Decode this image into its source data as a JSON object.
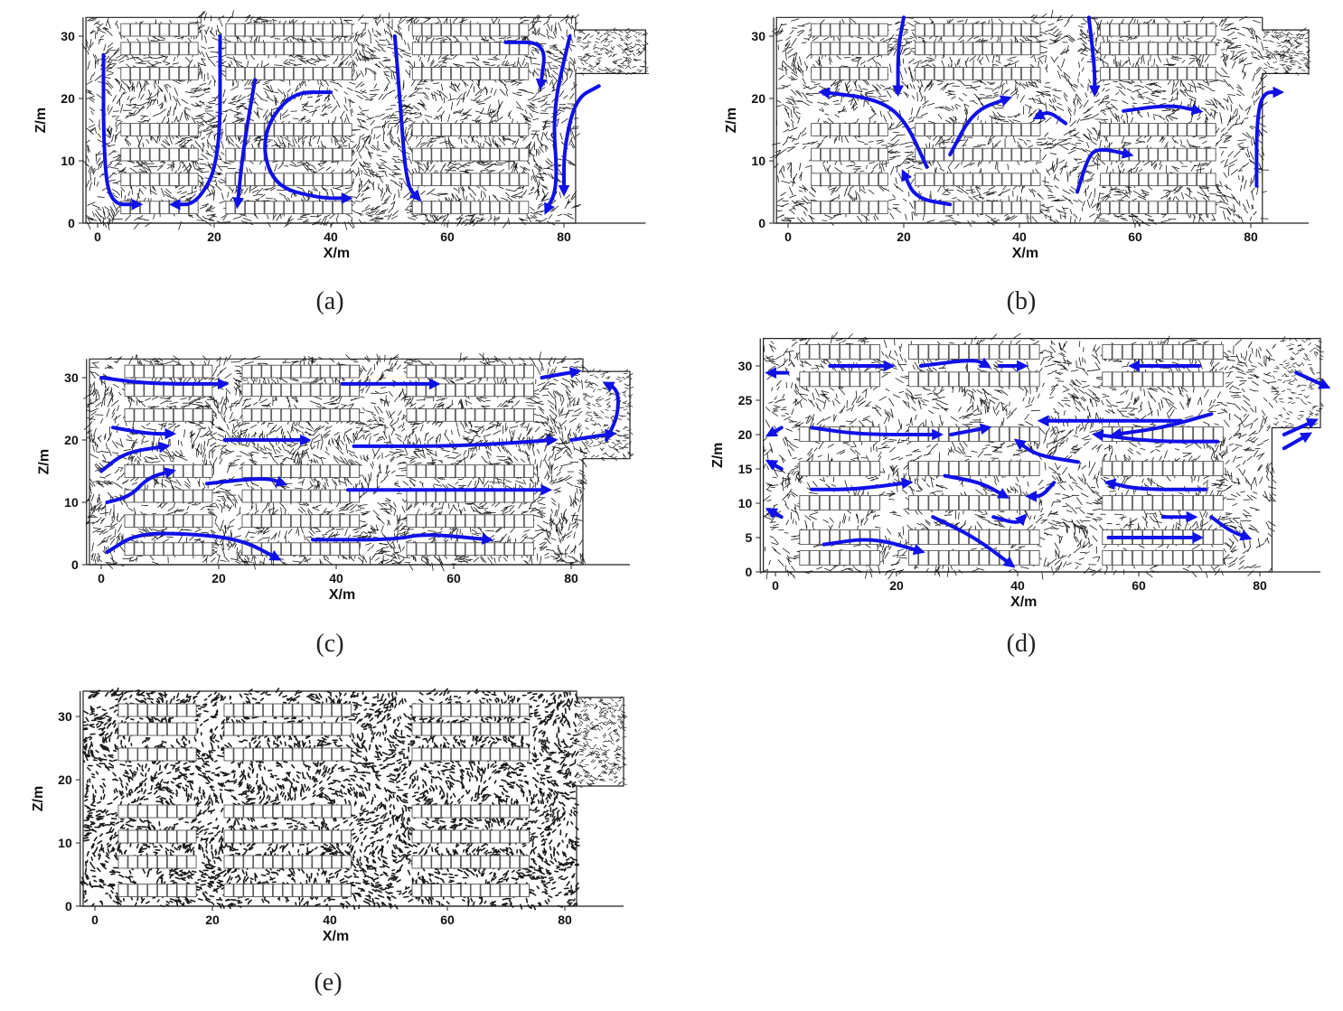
{
  "colors": {
    "flow_arrow": "#1010e8",
    "vector": "#1a1a1a",
    "rack": "#555555",
    "background": "#ffffff"
  },
  "panels": [
    {
      "id": "a",
      "caption": "(a)",
      "xlabel": "X/m",
      "ylabel": "Z/m",
      "xticks": [
        "0",
        "20",
        "40",
        "60",
        "80"
      ],
      "yticks": [
        "0",
        "10",
        "20",
        "30"
      ],
      "density": "medium",
      "has_arrows": true
    },
    {
      "id": "b",
      "caption": "(b)",
      "xlabel": "X/m",
      "ylabel": "Z/m",
      "xticks": [
        "0",
        "20",
        "40",
        "60",
        "80"
      ],
      "yticks": [
        "0",
        "10",
        "20",
        "30"
      ],
      "density": "light",
      "has_arrows": true
    },
    {
      "id": "c",
      "caption": "(c)",
      "xlabel": "X/m",
      "ylabel": "Z/m",
      "xticks": [
        "0",
        "20",
        "40",
        "60",
        "80"
      ],
      "yticks": [
        "0",
        "10",
        "20",
        "30"
      ],
      "density": "medium",
      "has_arrows": true
    },
    {
      "id": "d",
      "caption": "(d)",
      "xlabel": "X/m",
      "ylabel": "Z/m",
      "xticks": [
        "0",
        "20",
        "40",
        "60",
        "80"
      ],
      "yticks": [
        "0",
        "5",
        "10",
        "15",
        "20",
        "25",
        "30"
      ],
      "density": "light",
      "has_arrows": true
    },
    {
      "id": "e",
      "caption": "(e)",
      "xlabel": "X/m",
      "ylabel": "Z/m",
      "xticks": [
        "0",
        "20",
        "40",
        "60",
        "80"
      ],
      "yticks": [
        "0",
        "10",
        "20",
        "30"
      ],
      "density": "heavy",
      "has_arrows": false
    }
  ]
}
